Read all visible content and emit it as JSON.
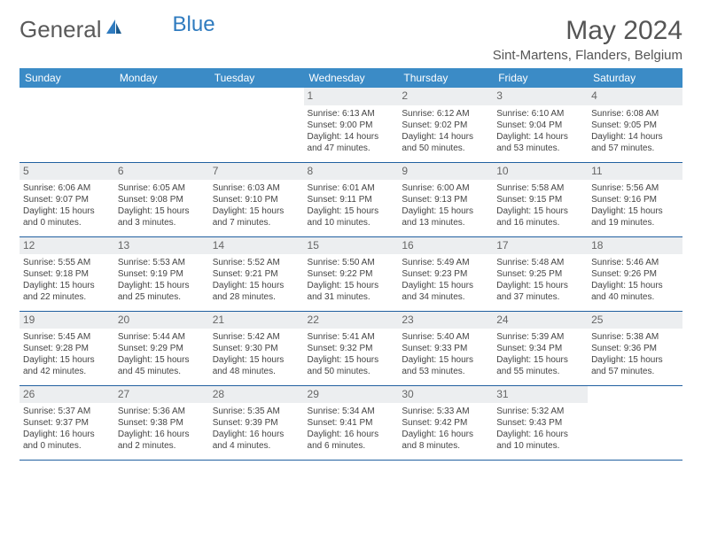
{
  "logo": {
    "text1": "General",
    "text2": "Blue",
    "color1": "#6a6a6a",
    "color2": "#2f7bbf",
    "icon_color": "#2f7bbf"
  },
  "title": "May 2024",
  "location": "Sint-Martens, Flanders, Belgium",
  "colors": {
    "header_bg": "#3b8bc6",
    "header_text": "#ffffff",
    "daynum_bg": "#eceef0",
    "daynum_text": "#666666",
    "border": "#2160a0",
    "body_text": "#444444"
  },
  "weekdays": [
    "Sunday",
    "Monday",
    "Tuesday",
    "Wednesday",
    "Thursday",
    "Friday",
    "Saturday"
  ],
  "weeks": [
    [
      {
        "day": "",
        "lines": []
      },
      {
        "day": "",
        "lines": []
      },
      {
        "day": "",
        "lines": []
      },
      {
        "day": "1",
        "lines": [
          "Sunrise: 6:13 AM",
          "Sunset: 9:00 PM",
          "Daylight: 14 hours and 47 minutes."
        ]
      },
      {
        "day": "2",
        "lines": [
          "Sunrise: 6:12 AM",
          "Sunset: 9:02 PM",
          "Daylight: 14 hours and 50 minutes."
        ]
      },
      {
        "day": "3",
        "lines": [
          "Sunrise: 6:10 AM",
          "Sunset: 9:04 PM",
          "Daylight: 14 hours and 53 minutes."
        ]
      },
      {
        "day": "4",
        "lines": [
          "Sunrise: 6:08 AM",
          "Sunset: 9:05 PM",
          "Daylight: 14 hours and 57 minutes."
        ]
      }
    ],
    [
      {
        "day": "5",
        "lines": [
          "Sunrise: 6:06 AM",
          "Sunset: 9:07 PM",
          "Daylight: 15 hours and 0 minutes."
        ]
      },
      {
        "day": "6",
        "lines": [
          "Sunrise: 6:05 AM",
          "Sunset: 9:08 PM",
          "Daylight: 15 hours and 3 minutes."
        ]
      },
      {
        "day": "7",
        "lines": [
          "Sunrise: 6:03 AM",
          "Sunset: 9:10 PM",
          "Daylight: 15 hours and 7 minutes."
        ]
      },
      {
        "day": "8",
        "lines": [
          "Sunrise: 6:01 AM",
          "Sunset: 9:11 PM",
          "Daylight: 15 hours and 10 minutes."
        ]
      },
      {
        "day": "9",
        "lines": [
          "Sunrise: 6:00 AM",
          "Sunset: 9:13 PM",
          "Daylight: 15 hours and 13 minutes."
        ]
      },
      {
        "day": "10",
        "lines": [
          "Sunrise: 5:58 AM",
          "Sunset: 9:15 PM",
          "Daylight: 15 hours and 16 minutes."
        ]
      },
      {
        "day": "11",
        "lines": [
          "Sunrise: 5:56 AM",
          "Sunset: 9:16 PM",
          "Daylight: 15 hours and 19 minutes."
        ]
      }
    ],
    [
      {
        "day": "12",
        "lines": [
          "Sunrise: 5:55 AM",
          "Sunset: 9:18 PM",
          "Daylight: 15 hours and 22 minutes."
        ]
      },
      {
        "day": "13",
        "lines": [
          "Sunrise: 5:53 AM",
          "Sunset: 9:19 PM",
          "Daylight: 15 hours and 25 minutes."
        ]
      },
      {
        "day": "14",
        "lines": [
          "Sunrise: 5:52 AM",
          "Sunset: 9:21 PM",
          "Daylight: 15 hours and 28 minutes."
        ]
      },
      {
        "day": "15",
        "lines": [
          "Sunrise: 5:50 AM",
          "Sunset: 9:22 PM",
          "Daylight: 15 hours and 31 minutes."
        ]
      },
      {
        "day": "16",
        "lines": [
          "Sunrise: 5:49 AM",
          "Sunset: 9:23 PM",
          "Daylight: 15 hours and 34 minutes."
        ]
      },
      {
        "day": "17",
        "lines": [
          "Sunrise: 5:48 AM",
          "Sunset: 9:25 PM",
          "Daylight: 15 hours and 37 minutes."
        ]
      },
      {
        "day": "18",
        "lines": [
          "Sunrise: 5:46 AM",
          "Sunset: 9:26 PM",
          "Daylight: 15 hours and 40 minutes."
        ]
      }
    ],
    [
      {
        "day": "19",
        "lines": [
          "Sunrise: 5:45 AM",
          "Sunset: 9:28 PM",
          "Daylight: 15 hours and 42 minutes."
        ]
      },
      {
        "day": "20",
        "lines": [
          "Sunrise: 5:44 AM",
          "Sunset: 9:29 PM",
          "Daylight: 15 hours and 45 minutes."
        ]
      },
      {
        "day": "21",
        "lines": [
          "Sunrise: 5:42 AM",
          "Sunset: 9:30 PM",
          "Daylight: 15 hours and 48 minutes."
        ]
      },
      {
        "day": "22",
        "lines": [
          "Sunrise: 5:41 AM",
          "Sunset: 9:32 PM",
          "Daylight: 15 hours and 50 minutes."
        ]
      },
      {
        "day": "23",
        "lines": [
          "Sunrise: 5:40 AM",
          "Sunset: 9:33 PM",
          "Daylight: 15 hours and 53 minutes."
        ]
      },
      {
        "day": "24",
        "lines": [
          "Sunrise: 5:39 AM",
          "Sunset: 9:34 PM",
          "Daylight: 15 hours and 55 minutes."
        ]
      },
      {
        "day": "25",
        "lines": [
          "Sunrise: 5:38 AM",
          "Sunset: 9:36 PM",
          "Daylight: 15 hours and 57 minutes."
        ]
      }
    ],
    [
      {
        "day": "26",
        "lines": [
          "Sunrise: 5:37 AM",
          "Sunset: 9:37 PM",
          "Daylight: 16 hours and 0 minutes."
        ]
      },
      {
        "day": "27",
        "lines": [
          "Sunrise: 5:36 AM",
          "Sunset: 9:38 PM",
          "Daylight: 16 hours and 2 minutes."
        ]
      },
      {
        "day": "28",
        "lines": [
          "Sunrise: 5:35 AM",
          "Sunset: 9:39 PM",
          "Daylight: 16 hours and 4 minutes."
        ]
      },
      {
        "day": "29",
        "lines": [
          "Sunrise: 5:34 AM",
          "Sunset: 9:41 PM",
          "Daylight: 16 hours and 6 minutes."
        ]
      },
      {
        "day": "30",
        "lines": [
          "Sunrise: 5:33 AM",
          "Sunset: 9:42 PM",
          "Daylight: 16 hours and 8 minutes."
        ]
      },
      {
        "day": "31",
        "lines": [
          "Sunrise: 5:32 AM",
          "Sunset: 9:43 PM",
          "Daylight: 16 hours and 10 minutes."
        ]
      },
      {
        "day": "",
        "lines": []
      }
    ]
  ]
}
